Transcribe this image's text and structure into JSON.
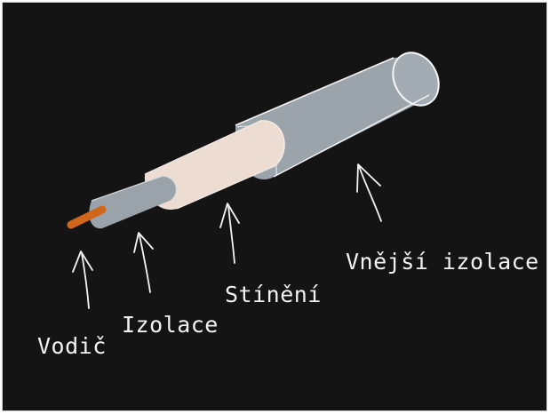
{
  "labels": {
    "vodic": "Vodič",
    "izolace": "Izolace",
    "stineni": "Stínění",
    "vnejsi_izolace": "Vnější izolace"
  },
  "colors": {
    "background": "#141414",
    "conductor": "#d0661c",
    "inner_insulation": "#9aa2aa",
    "shielding": "#eddcd2",
    "outer_insulation": "#9ba3ab",
    "outline": "#f4f4f4",
    "text": "#f2f2f2"
  }
}
